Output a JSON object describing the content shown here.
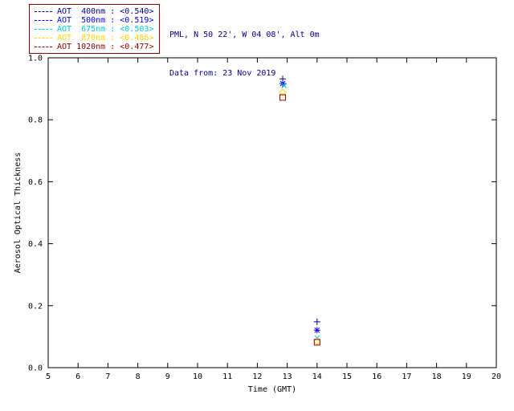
{
  "header": {
    "location": "PML, N 50 22', W 04 08', Alt 0m",
    "date": "Data from: 23 Nov 2019"
  },
  "legend": {
    "border_color": "#8B0000",
    "items": [
      {
        "label": "AOT  400nm : <0.540>",
        "color": "#00008B",
        "marker": "plus"
      },
      {
        "label": "AOT  500nm : <0.519>",
        "color": "#0000EE",
        "marker": "asterisk"
      },
      {
        "label": "AOT  675nm : <0.503>",
        "color": "#00CCCC",
        "marker": "x"
      },
      {
        "label": "AOT  870nm : <0.486>",
        "color": "#FFD700",
        "marker": "diamond"
      },
      {
        "label": "AOT 1020nm : <0.477>",
        "color": "#8B0000",
        "marker": "square"
      }
    ]
  },
  "chart_data": {
    "type": "scatter",
    "title": "",
    "xlabel": "Time (GMT)",
    "ylabel": "Aerosol Optical Thickness",
    "xlim": [
      5,
      20
    ],
    "ylim": [
      0.0,
      1.0
    ],
    "xticks": [
      5,
      6,
      7,
      8,
      9,
      10,
      11,
      12,
      13,
      14,
      15,
      16,
      17,
      18,
      19,
      20
    ],
    "yticks": [
      0.0,
      0.2,
      0.4,
      0.6,
      0.8,
      1.0
    ],
    "ytick_labels": [
      "0.0",
      "0.2",
      "0.4",
      "0.6",
      "0.8",
      "1.0"
    ],
    "grid": false,
    "legend_position": "top-left",
    "frame_color": "#000000",
    "series": [
      {
        "name": "AOT 400nm",
        "mean_label": "<0.540>",
        "color": "#00008B",
        "marker": "plus",
        "x": [
          12.85,
          14.0
        ],
        "y": [
          0.932,
          0.148
        ]
      },
      {
        "name": "AOT 500nm",
        "mean_label": "<0.519>",
        "color": "#0000EE",
        "marker": "asterisk",
        "x": [
          12.85,
          14.0
        ],
        "y": [
          0.917,
          0.121
        ]
      },
      {
        "name": "AOT 675nm",
        "mean_label": "<0.503>",
        "color": "#00CCCC",
        "marker": "x",
        "x": [
          12.9,
          14.0
        ],
        "y": [
          0.91,
          0.096
        ]
      },
      {
        "name": "AOT 870nm",
        "mean_label": "<0.486>",
        "color": "#FFD700",
        "marker": "diamond",
        "x": [
          12.85,
          14.0
        ],
        "y": [
          0.888,
          0.084
        ]
      },
      {
        "name": "AOT 1020nm",
        "mean_label": "<0.477>",
        "color": "#8B0000",
        "marker": "square",
        "x": [
          12.85,
          14.0
        ],
        "y": [
          0.872,
          0.082
        ]
      }
    ]
  }
}
